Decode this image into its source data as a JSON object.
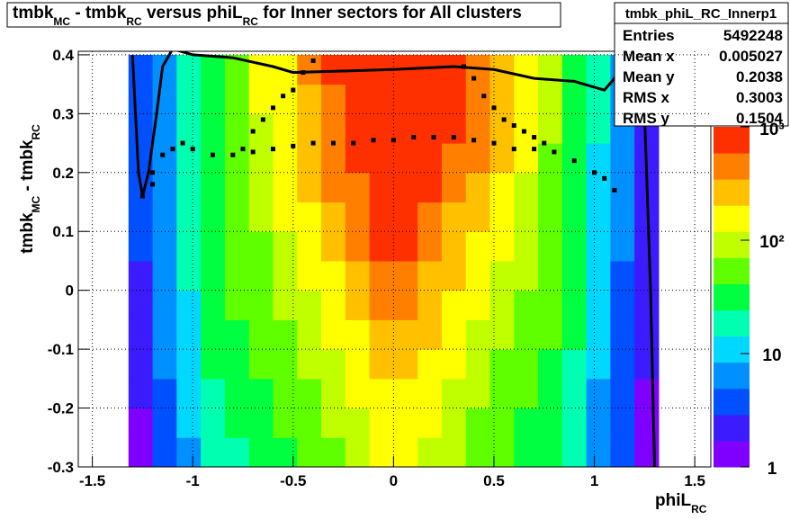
{
  "chart_data": {
    "type": "heatmap",
    "title_parts": [
      "tmbk",
      "MC",
      " - tmbk",
      "RC",
      " versus phiL",
      "RC",
      " for Inner sectors for All clusters"
    ],
    "xlabel_parts": [
      "phiL",
      "RC"
    ],
    "ylabel_parts": [
      "tmbk",
      "MC",
      " - tmbk",
      "RC"
    ],
    "xlim": [
      -1.57,
      1.58
    ],
    "ylim": [
      -0.3,
      0.406
    ],
    "xticks": [
      -1.5,
      -1,
      -0.5,
      0,
      0.5,
      1,
      1.5
    ],
    "yticks": [
      -0.3,
      -0.2,
      -0.1,
      0,
      0.1,
      0.2,
      0.3,
      0.4
    ],
    "grid": true,
    "zlog": true,
    "zlim": [
      1,
      1000
    ],
    "zticks": [
      1,
      10,
      {
        "value": 100,
        "label": "10²"
      },
      {
        "value": 1000,
        "label": "10³"
      }
    ],
    "palette": [
      "#7f00ff",
      "#3c1cff",
      "#0050ff",
      "#0090ff",
      "#00d8ff",
      "#00ffb0",
      "#00ff40",
      "#60ff00",
      "#c0ff00",
      "#ffff00",
      "#ffc000",
      "#ff8000",
      "#ff3000"
    ],
    "xbins": [
      -1.32,
      -1.2,
      -1.08,
      -0.96,
      -0.84,
      -0.72,
      -0.6,
      -0.48,
      -0.36,
      -0.24,
      -0.12,
      0,
      0.12,
      0.24,
      0.36,
      0.48,
      0.6,
      0.72,
      0.84,
      0.96,
      1.08,
      1.2,
      1.32
    ],
    "ybins": [
      -0.3,
      -0.25,
      -0.2,
      -0.15,
      -0.1,
      -0.05,
      0,
      0.05,
      0.1,
      0.15,
      0.2,
      0.25,
      0.3,
      0.35,
      0.4
    ],
    "z": [
      [
        1,
        3,
        8,
        16,
        22,
        28,
        36,
        46,
        60,
        85,
        130,
        130,
        105,
        78,
        58,
        45,
        34,
        26,
        15,
        6,
        3,
        1
      ],
      [
        1,
        4,
        9,
        19,
        26,
        33,
        42,
        54,
        72,
        100,
        160,
        160,
        125,
        90,
        68,
        52,
        40,
        30,
        18,
        7,
        3,
        1
      ],
      [
        2,
        4,
        10,
        22,
        30,
        38,
        48,
        62,
        85,
        120,
        200,
        200,
        150,
        105,
        78,
        60,
        45,
        34,
        21,
        8,
        3,
        1
      ],
      [
        2,
        5,
        12,
        25,
        34,
        44,
        56,
        72,
        100,
        150,
        250,
        250,
        180,
        125,
        90,
        70,
        52,
        38,
        24,
        9,
        4,
        2
      ],
      [
        2,
        5,
        13,
        28,
        38,
        50,
        65,
        85,
        120,
        190,
        320,
        320,
        220,
        150,
        105,
        80,
        60,
        42,
        26,
        10,
        4,
        2
      ],
      [
        2,
        6,
        14,
        30,
        42,
        55,
        75,
        100,
        150,
        240,
        400,
        400,
        280,
        180,
        125,
        95,
        70,
        46,
        28,
        10,
        4,
        2
      ],
      [
        2,
        6,
        15,
        32,
        46,
        62,
        85,
        120,
        180,
        300,
        520,
        520,
        340,
        220,
        150,
        110,
        80,
        50,
        30,
        11,
        4,
        2
      ],
      [
        3,
        6,
        16,
        34,
        50,
        70,
        100,
        150,
        230,
        380,
        600,
        600,
        420,
        280,
        190,
        130,
        90,
        55,
        32,
        12,
        5,
        2
      ],
      [
        3,
        7,
        17,
        36,
        55,
        80,
        120,
        180,
        280,
        450,
        650,
        650,
        500,
        340,
        230,
        150,
        100,
        60,
        34,
        13,
        5,
        2
      ],
      [
        3,
        7,
        18,
        38,
        60,
        90,
        140,
        220,
        350,
        550,
        700,
        700,
        600,
        420,
        280,
        180,
        110,
        65,
        36,
        14,
        5,
        2
      ],
      [
        3,
        7,
        18,
        40,
        65,
        100,
        160,
        260,
        420,
        650,
        750,
        750,
        700,
        520,
        350,
        220,
        120,
        70,
        38,
        14,
        5,
        2
      ],
      [
        3,
        8,
        20,
        40,
        70,
        110,
        180,
        300,
        500,
        700,
        800,
        800,
        750,
        600,
        400,
        250,
        130,
        75,
        40,
        15,
        6,
        2
      ],
      [
        3,
        8,
        20,
        40,
        70,
        120,
        200,
        320,
        550,
        750,
        850,
        850,
        800,
        650,
        450,
        280,
        140,
        80,
        40,
        15,
        6,
        2
      ],
      [
        3,
        8,
        20,
        40,
        70,
        120,
        200,
        350,
        600,
        800,
        900,
        900,
        850,
        700,
        500,
        300,
        150,
        80,
        40,
        15,
        6,
        2
      ]
    ],
    "points": [
      {
        "x": [
          -1.25,
          -1.2,
          -1.15,
          -1.1,
          -1.05,
          -1.0,
          -0.9,
          -0.8,
          -0.7,
          -0.6,
          -0.5,
          -0.4,
          -0.3,
          -0.2,
          -0.1,
          0,
          0.1,
          0.2,
          0.3,
          0.4,
          0.5,
          0.6,
          0.7,
          0.8,
          0.9,
          1.0,
          1.05,
          1.1
        ],
        "y": [
          0.16,
          0.2,
          0.23,
          0.24,
          0.25,
          0.24,
          0.23,
          0.23,
          0.235,
          0.24,
          0.245,
          0.25,
          0.25,
          0.25,
          0.255,
          0.255,
          0.26,
          0.26,
          0.26,
          0.255,
          0.25,
          0.24,
          0.24,
          0.235,
          0.22,
          0.2,
          0.19,
          0.17
        ]
      },
      {
        "x": [
          -1.2,
          -0.75,
          -0.7,
          -0.65,
          -0.6,
          -0.55,
          -0.5,
          -0.45,
          -0.4,
          0.35,
          0.4,
          0.45,
          0.5,
          0.55,
          0.6,
          0.65,
          0.7,
          0.75
        ],
        "y": [
          0.18,
          0.24,
          0.27,
          0.29,
          0.31,
          0.33,
          0.34,
          0.37,
          0.39,
          0.38,
          0.36,
          0.33,
          0.31,
          0.29,
          0.28,
          0.27,
          0.26,
          0.25
        ]
      }
    ],
    "curve": {
      "x": [
        -1.3,
        -1.27,
        -1.25,
        -1.22,
        -1.18,
        -1.15,
        -1.1,
        -1.0,
        -0.8,
        -0.6,
        -0.5,
        -0.3,
        0,
        0.3,
        0.5,
        0.7,
        0.9,
        1.0,
        1.05,
        1.1,
        1.15,
        1.2,
        1.25,
        1.28,
        1.3
      ],
      "y": [
        0.4,
        0.2,
        0.16,
        0.2,
        0.3,
        0.38,
        0.41,
        0.4,
        0.395,
        0.38,
        0.37,
        0.372,
        0.375,
        0.38,
        0.375,
        0.36,
        0.355,
        0.345,
        0.34,
        0.36,
        0.39,
        0.38,
        0.3,
        0.0,
        -0.3
      ]
    },
    "stats": {
      "name": "tmbk_phiL_RC_Innerp1",
      "rows": [
        [
          "Entries",
          "5492248"
        ],
        [
          "Mean x",
          "0.005027"
        ],
        [
          "Mean y",
          "0.2038"
        ],
        [
          "RMS x",
          "0.3003"
        ],
        [
          "RMS y",
          "0.1504"
        ]
      ]
    }
  }
}
